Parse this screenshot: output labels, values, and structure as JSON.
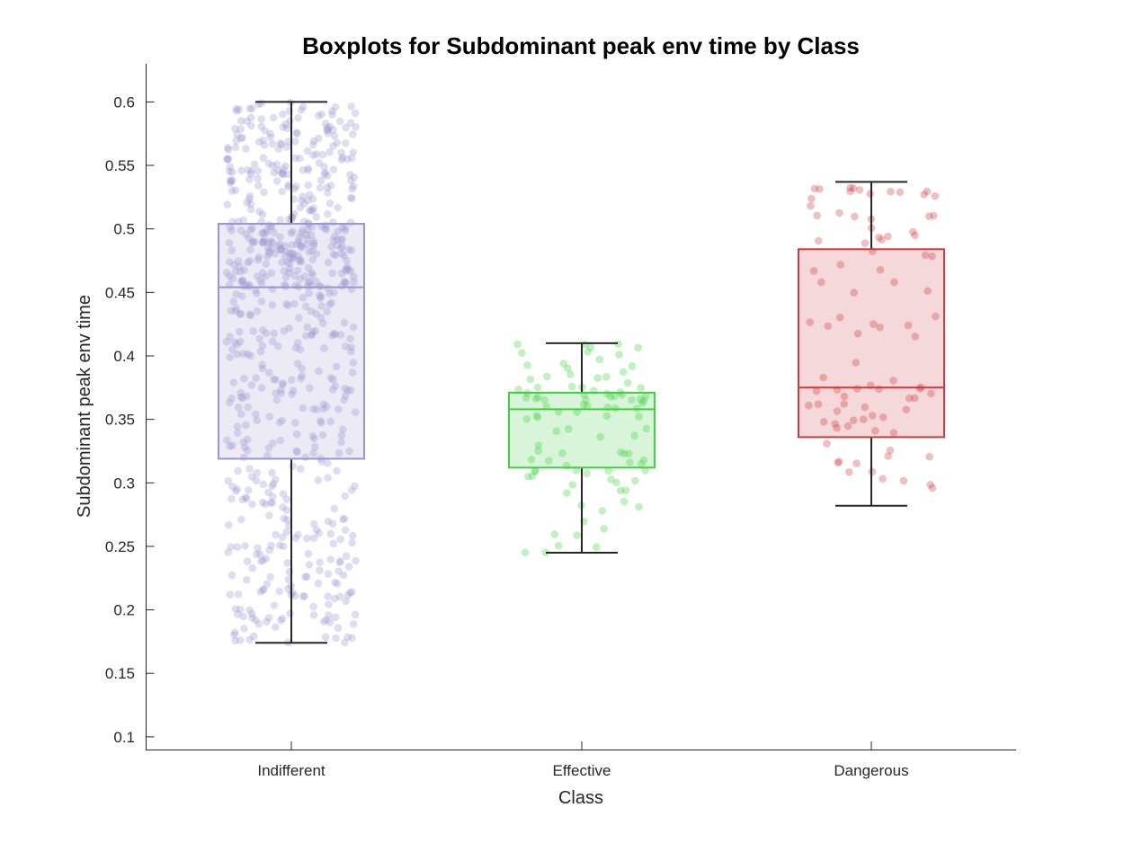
{
  "chart_data": {
    "type": "box",
    "title": "Boxplots for Subdominant peak env time by Class",
    "xlabel": "Class",
    "ylabel": "Subdominant peak env time",
    "ylim": [
      0.09,
      0.63
    ],
    "yticks": [
      0.1,
      0.15,
      0.2,
      0.25,
      0.3,
      0.35,
      0.4,
      0.45,
      0.5,
      0.55,
      0.6
    ],
    "ytick_labels": [
      "0.1",
      "0.15",
      "0.2",
      "0.25",
      "0.3",
      "0.35",
      "0.4",
      "0.45",
      "0.5",
      "0.55",
      "0.6"
    ],
    "categories": [
      "Indifferent",
      "Effective",
      "Dangerous"
    ],
    "grid": false,
    "series": [
      {
        "category": "Indifferent",
        "color": "#9a96cf",
        "whisker_low": 0.174,
        "q1": 0.319,
        "median": 0.454,
        "q3": 0.504,
        "whisker_high": 0.6,
        "point_count": 700
      },
      {
        "category": "Effective",
        "color": "#3fcf3f",
        "whisker_low": 0.245,
        "q1": 0.312,
        "median": 0.358,
        "q3": 0.371,
        "whisker_high": 0.41,
        "point_count": 100
      },
      {
        "category": "Dangerous",
        "color": "#cc3a3f",
        "whisker_low": 0.282,
        "q1": 0.336,
        "median": 0.375,
        "q3": 0.484,
        "whisker_high": 0.537,
        "point_count": 90
      }
    ]
  }
}
